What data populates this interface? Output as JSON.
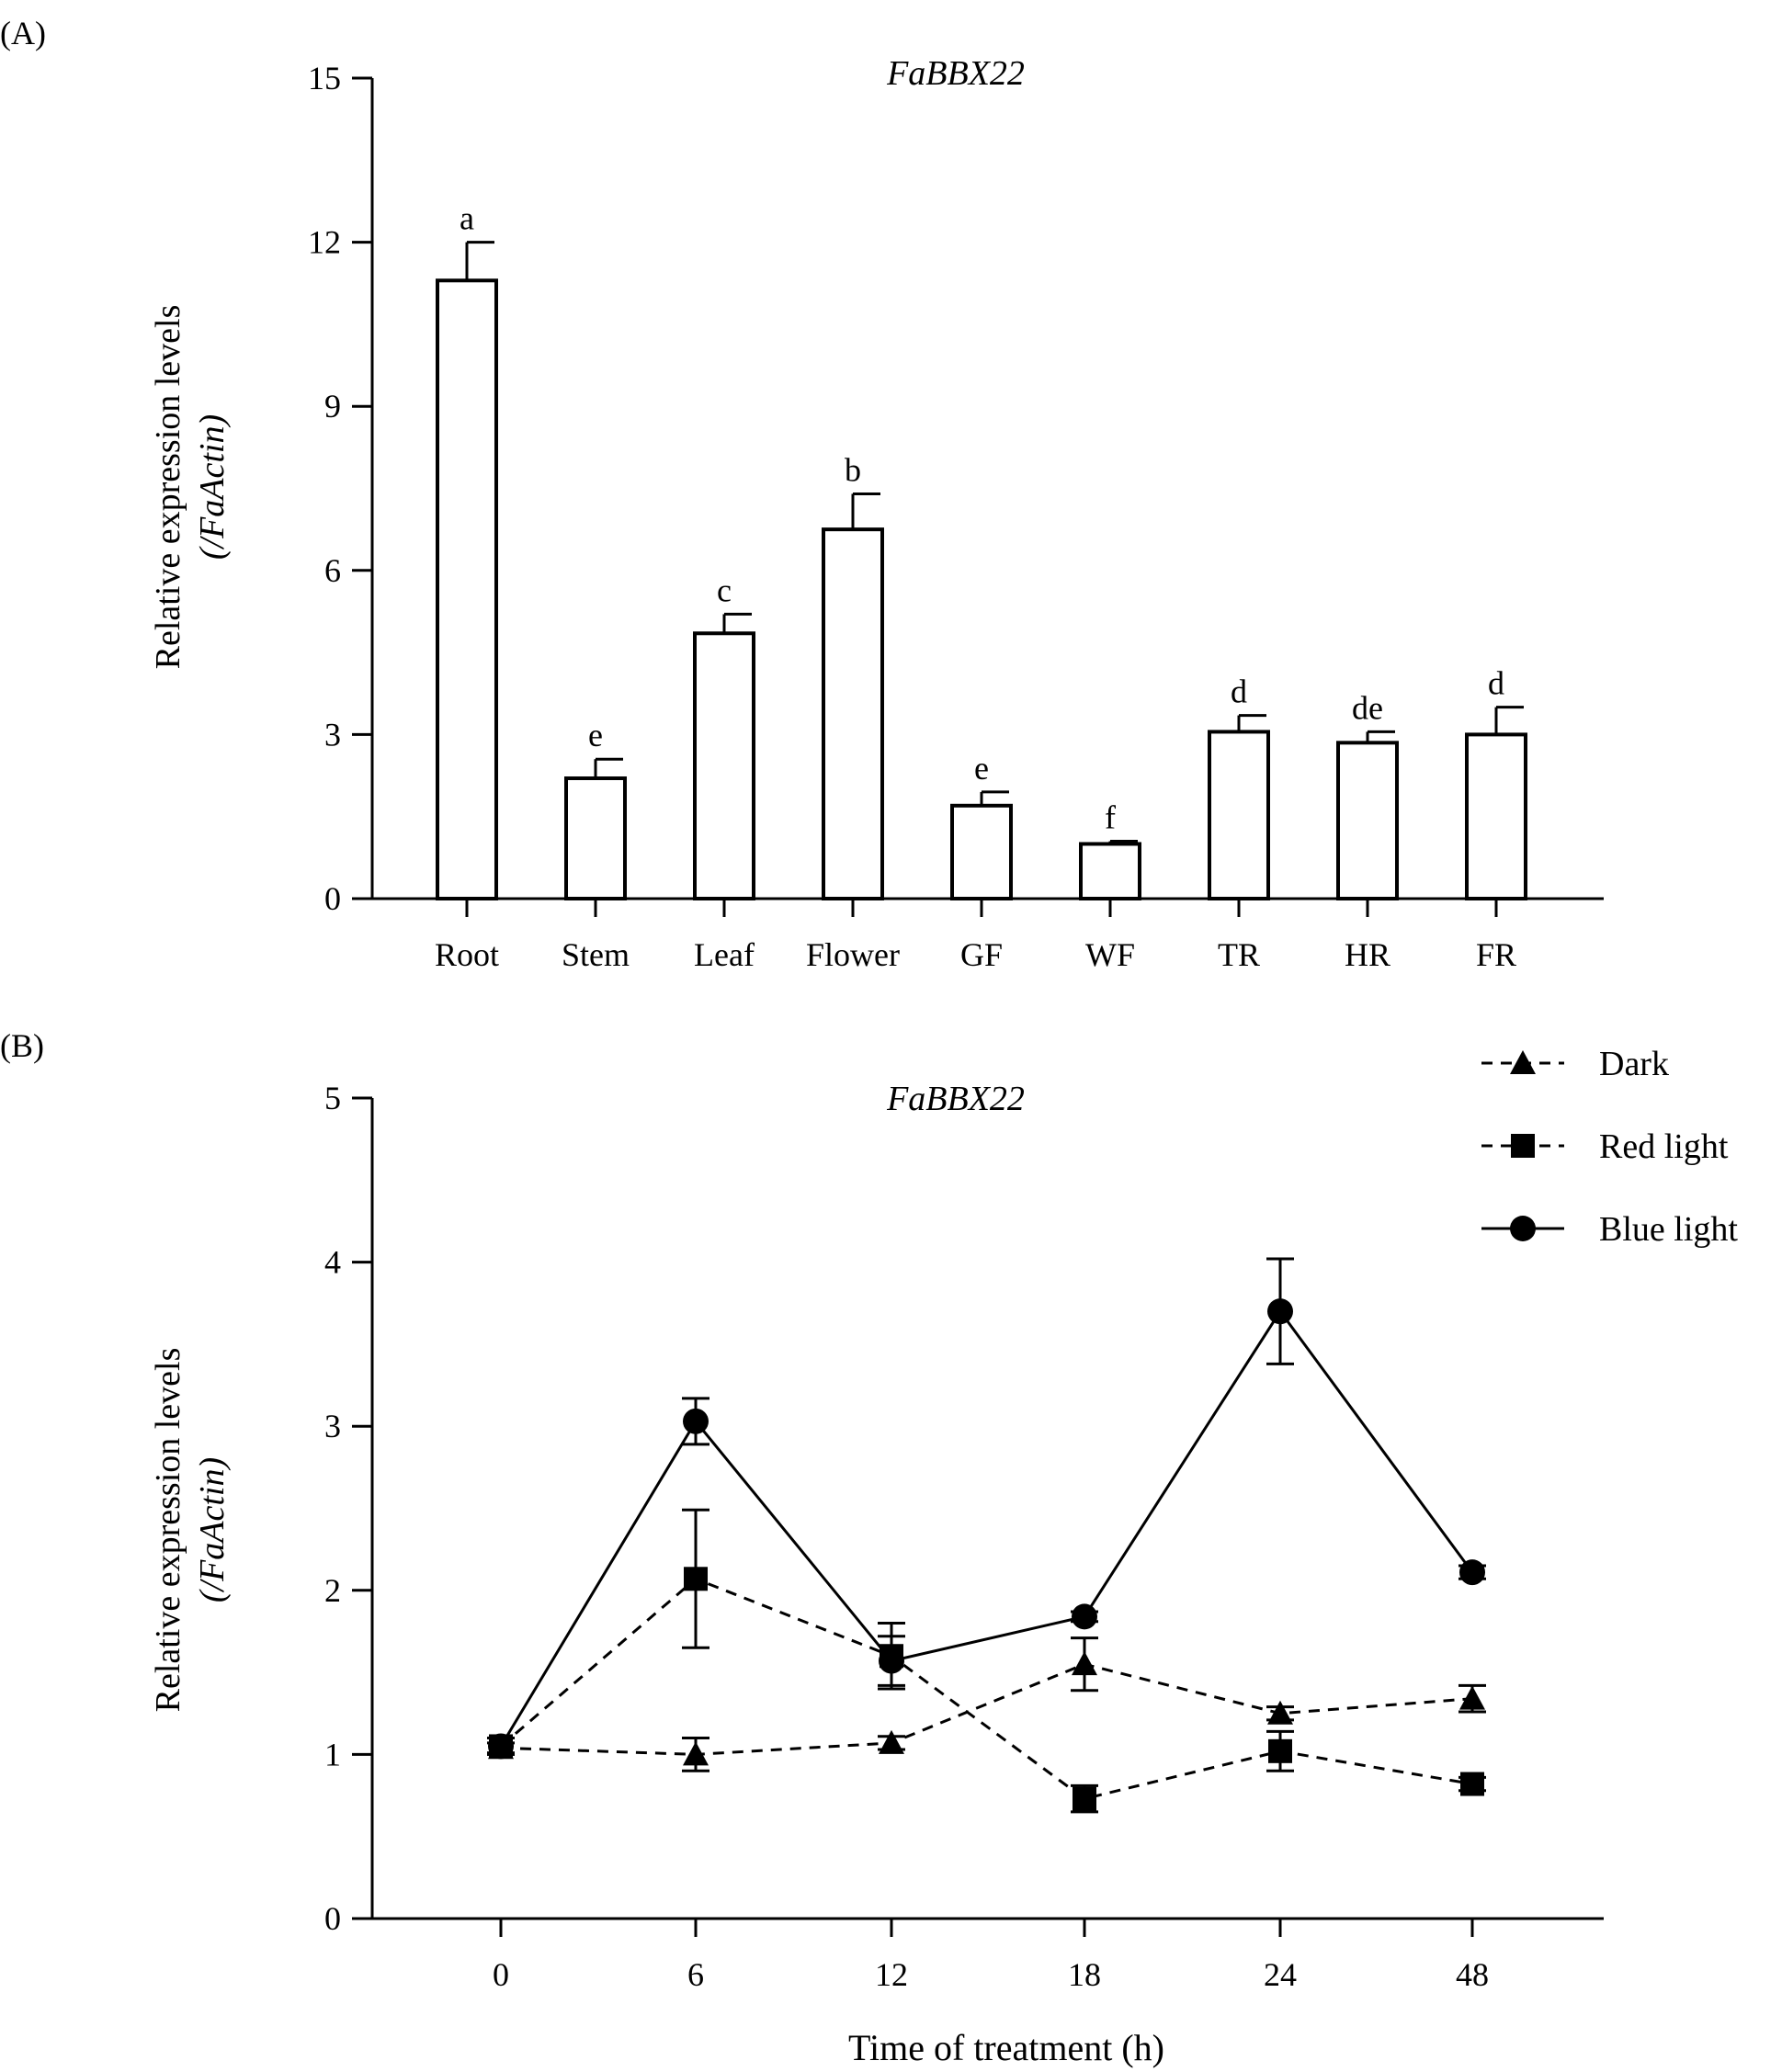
{
  "chart_data": [
    {
      "panel": "(A)",
      "type": "bar",
      "title": "FaBBX22",
      "ylabel_line1": "Relative expression levels",
      "ylabel_line2": "(/FaActin)",
      "xlabel": "",
      "ylim": [
        0,
        15
      ],
      "yticks": [
        0,
        3,
        6,
        9,
        12,
        15
      ],
      "categories": [
        "Root",
        "Stem",
        "Leaf",
        "Flower",
        "GF",
        "WF",
        "TR",
        "HR",
        "FR"
      ],
      "values": [
        11.3,
        2.2,
        4.85,
        6.75,
        1.7,
        1.0,
        3.05,
        2.85,
        3.0
      ],
      "errors": [
        0.7,
        0.35,
        0.35,
        0.65,
        0.25,
        0.05,
        0.3,
        0.2,
        0.5
      ],
      "significance": [
        "a",
        "e",
        "c",
        "b",
        "e",
        "f",
        "d",
        "de",
        "d"
      ]
    },
    {
      "panel": "(B)",
      "type": "line",
      "title": "FaBBX22",
      "ylabel_line1": "Relative expression levels",
      "ylabel_line2": "(/FaActin)",
      "xlabel": "Time of treatment (h)",
      "ylim": [
        0,
        5
      ],
      "yticks": [
        0,
        1,
        2,
        3,
        4,
        5
      ],
      "x": [
        "0",
        "6",
        "12",
        "18",
        "24",
        "48"
      ],
      "series": [
        {
          "name": "Dark",
          "marker": "triangle",
          "line": "dashed",
          "values": [
            1.04,
            1.0,
            1.07,
            1.55,
            1.25,
            1.34
          ],
          "errors": [
            0.03,
            0.1,
            0.04,
            0.16,
            0.04,
            0.08
          ]
        },
        {
          "name": "Red light",
          "marker": "square",
          "line": "dashed",
          "values": [
            1.05,
            2.07,
            1.6,
            0.73,
            1.02,
            0.82
          ],
          "errors": [
            0.05,
            0.42,
            0.2,
            0.08,
            0.12,
            0.04
          ]
        },
        {
          "name": "Blue light",
          "marker": "circle",
          "line": "solid",
          "values": [
            1.05,
            3.03,
            1.57,
            1.84,
            3.7,
            2.11
          ],
          "errors": [
            0.05,
            0.14,
            0.15,
            0.03,
            0.32,
            0.04
          ]
        }
      ]
    }
  ]
}
